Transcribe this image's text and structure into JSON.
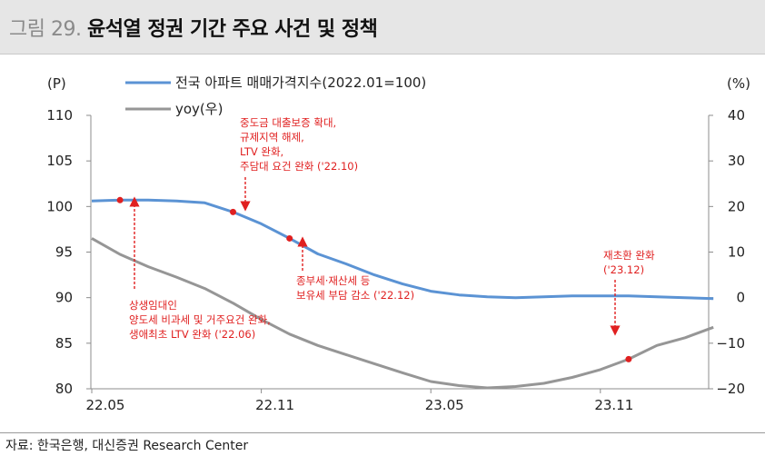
{
  "header": {
    "fig_label": "그림 29.",
    "title": "윤석열 정권 기간 주요 사건 및 정책"
  },
  "footer": {
    "source": "자료: 한국은행, 대신증권 Research Center"
  },
  "colors": {
    "index_line": "#5b93d4",
    "yoy_line": "#969696",
    "annotation": "#e02020"
  },
  "chart_data": {
    "type": "line",
    "y_left_unit": "(P)",
    "y_right_unit": "(%)",
    "ylim_left": [
      80,
      110
    ],
    "yticks_left": [
      80,
      85,
      90,
      95,
      100,
      105,
      110
    ],
    "ylim_right": [
      -20,
      40
    ],
    "yticks_right": [
      "−20",
      "−10",
      "0",
      "10",
      "20",
      "30",
      "40"
    ],
    "yticks_right_values": [
      -20,
      -10,
      0,
      10,
      20,
      30,
      40
    ],
    "x_tick_labels": [
      "22.05",
      "22.11",
      "23.05",
      "23.11"
    ],
    "x_tick_index": [
      0,
      6,
      12,
      18
    ],
    "x_count": 23,
    "x": [
      "22.05",
      "22.06",
      "22.07",
      "22.08",
      "22.09",
      "22.10",
      "22.11",
      "22.12",
      "23.01",
      "23.02",
      "23.03",
      "23.04",
      "23.05",
      "23.06",
      "23.07",
      "23.08",
      "23.09",
      "23.10",
      "23.11",
      "23.12",
      "24.01",
      "24.02",
      "24.03"
    ],
    "grid": false,
    "series": [
      {
        "name": "전국 아파트 매매가격지수(2022.01=100)",
        "axis": "left",
        "values": [
          100.6,
          100.7,
          100.7,
          100.6,
          100.4,
          99.4,
          98.1,
          96.5,
          94.8,
          93.7,
          92.5,
          91.5,
          90.7,
          90.3,
          90.1,
          90.0,
          90.1,
          90.2,
          90.2,
          90.2,
          90.1,
          90.0,
          89.9
        ]
      },
      {
        "name": "yoy(우)",
        "axis": "right",
        "values": [
          13.0,
          9.5,
          6.8,
          4.5,
          2.0,
          -1.2,
          -4.8,
          -8.0,
          -10.5,
          -12.5,
          -14.5,
          -16.5,
          -18.4,
          -19.3,
          -19.8,
          -19.5,
          -18.8,
          -17.5,
          -15.8,
          -13.5,
          -10.5,
          -8.8,
          -6.5
        ]
      }
    ],
    "annotations": [
      {
        "index": 1,
        "series": 0,
        "direction": "down",
        "lines": [
          "상생임대인",
          "양도세 비과세 및 거주요건 완화,",
          "생애최초 LTV 완화 ('22.06)"
        ]
      },
      {
        "index": 5,
        "series": 0,
        "direction": "up",
        "lines": [
          "중도금 대출보증 확대,",
          "규제지역 해제,",
          "LTV 완화,",
          "주담대 요건 완화 ('22.10)"
        ]
      },
      {
        "index": 7,
        "series": 0,
        "direction": "down",
        "lines": [
          "종부세·재산세 등",
          "보유세 부담 감소 ('22.12)"
        ]
      },
      {
        "index": 19,
        "series": 1,
        "direction": "up",
        "lines": [
          "재초환 완화",
          "('23.12)"
        ]
      }
    ]
  }
}
